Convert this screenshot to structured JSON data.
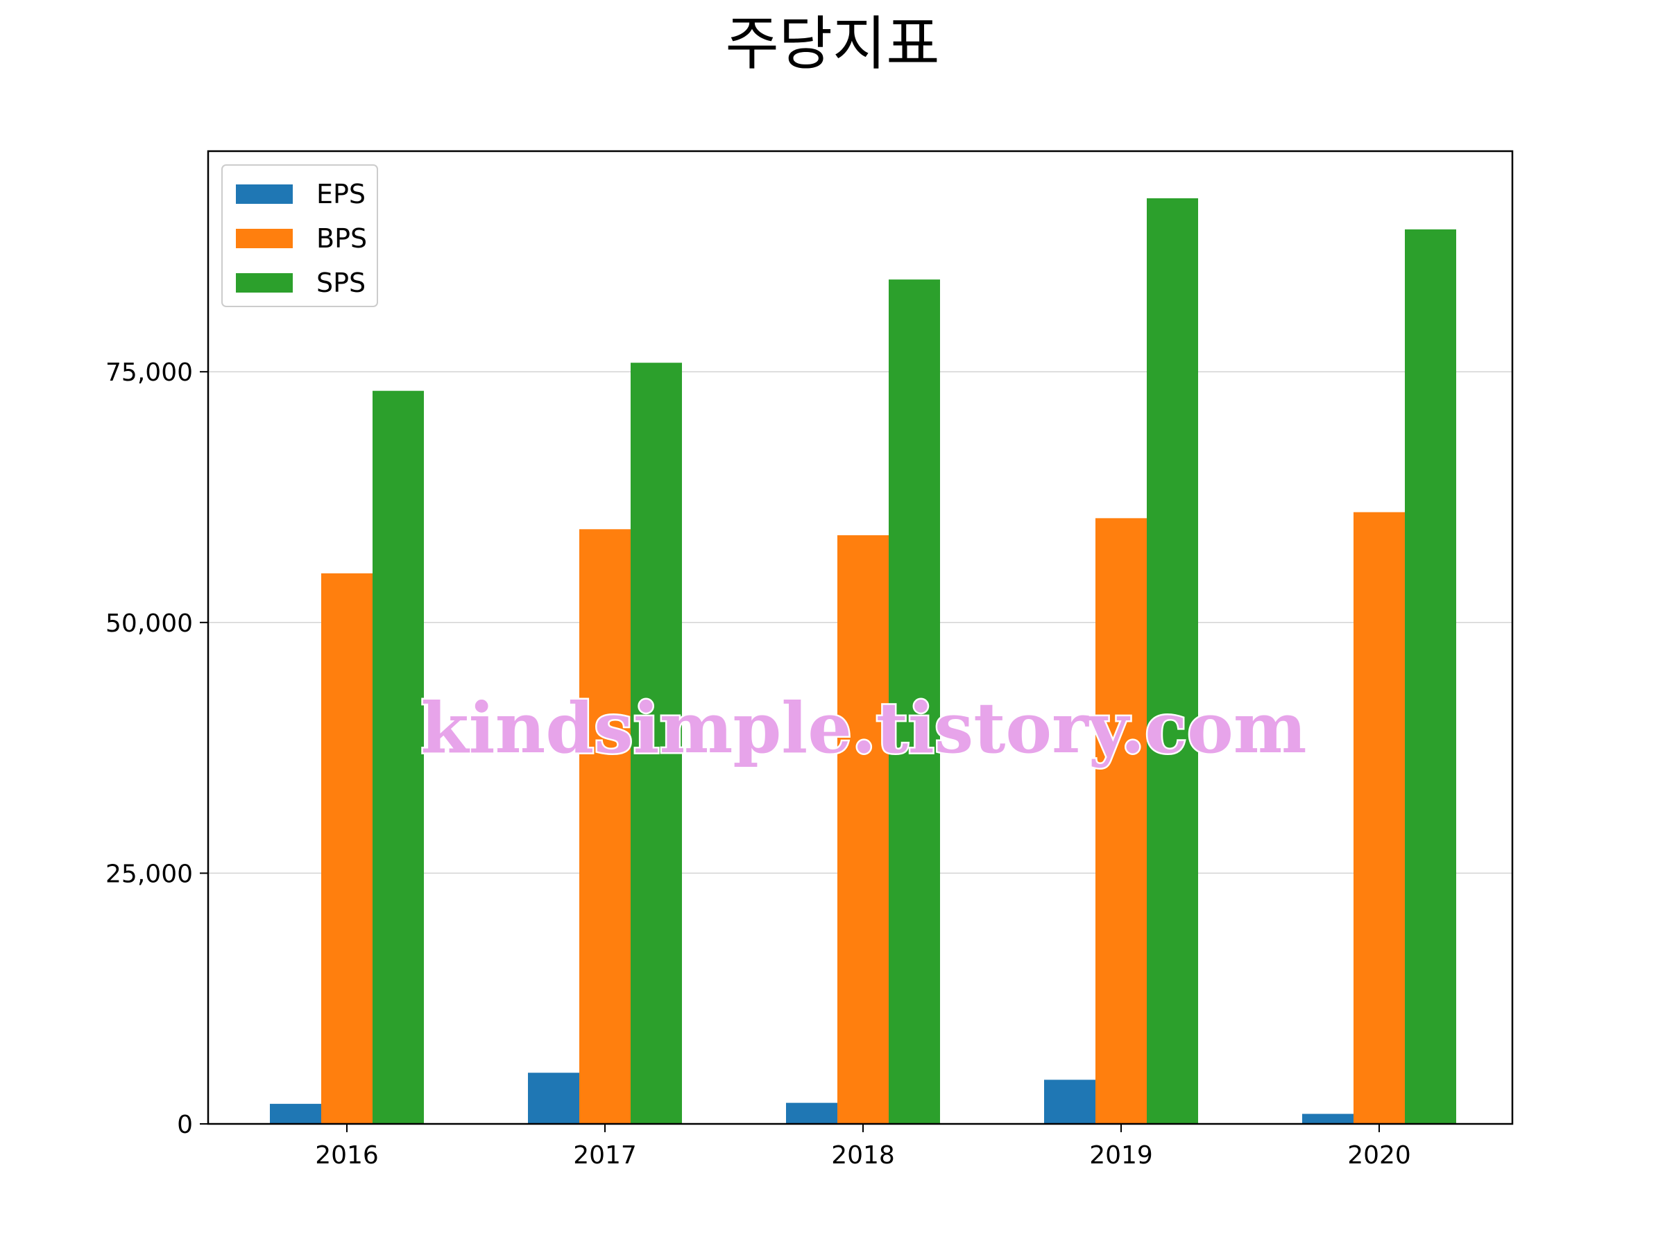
{
  "chart_data": {
    "type": "bar",
    "title": "주당지표",
    "xlabel": "",
    "ylabel": "",
    "categories": [
      "2016",
      "2017",
      "2018",
      "2019",
      "2020"
    ],
    "series": [
      {
        "name": "EPS",
        "color": "#1f77b4",
        "values": [
          2000,
          5100,
          2100,
          4400,
          1000
        ]
      },
      {
        "name": "BPS",
        "color": "#ff7f0e",
        "values": [
          54900,
          59300,
          58700,
          60400,
          61000
        ]
      },
      {
        "name": "SPS",
        "color": "#2ca02c",
        "values": [
          73100,
          75900,
          84200,
          92300,
          89200
        ]
      }
    ],
    "ylim": [
      0,
      97000
    ],
    "yticks": [
      0,
      25000,
      50000,
      75000
    ],
    "ytick_labels": [
      "0",
      "25,000",
      "50,000",
      "75,000"
    ],
    "grid": "y",
    "legend_position": "top-left"
  },
  "watermark": "kindsimple.tistory.com"
}
